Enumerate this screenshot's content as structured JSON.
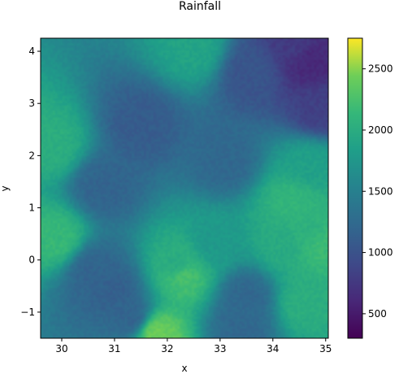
{
  "chart_data": {
    "type": "heatmap",
    "title": "Rainfall",
    "xlabel": "x",
    "ylabel": "y",
    "xlim": [
      29.6,
      35.05
    ],
    "ylim": [
      -1.5,
      4.25
    ],
    "x_ticks": [
      30,
      31,
      32,
      33,
      34,
      35
    ],
    "x_tick_labels": [
      "30",
      "31",
      "32",
      "33",
      "34",
      "35"
    ],
    "y_ticks": [
      -1,
      0,
      1,
      2,
      3,
      4
    ],
    "y_tick_labels": [
      "−1",
      "0",
      "1",
      "2",
      "3",
      "4"
    ],
    "colormap": "viridis",
    "color_range": [
      300,
      2750
    ],
    "colorbar_ticks": [
      500,
      1000,
      1500,
      2000,
      2500
    ],
    "colorbar_tick_labels": [
      "500",
      "1000",
      "1500",
      "2000",
      "2500"
    ],
    "grid": false,
    "features": [
      {
        "x": 34.7,
        "y": 3.8,
        "value": 400
      },
      {
        "x": 34.4,
        "y": 4.15,
        "value": 600
      },
      {
        "x": 33.6,
        "y": 3.6,
        "value": 900
      },
      {
        "x": 34.9,
        "y": 2.9,
        "value": 650
      },
      {
        "x": 31.5,
        "y": 2.6,
        "value": 1000
      },
      {
        "x": 30.8,
        "y": 1.4,
        "value": 1100
      },
      {
        "x": 33.1,
        "y": 1.9,
        "value": 1150
      },
      {
        "x": 30.6,
        "y": -0.2,
        "value": 1100
      },
      {
        "x": 31.0,
        "y": -0.6,
        "value": 1050
      },
      {
        "x": 31.3,
        "y": -1.1,
        "value": 1100
      },
      {
        "x": 33.5,
        "y": -0.7,
        "value": 1150
      },
      {
        "x": 33.4,
        "y": -1.3,
        "value": 1150
      },
      {
        "x": 29.8,
        "y": 2.2,
        "value": 2150
      },
      {
        "x": 29.9,
        "y": 0.4,
        "value": 2300
      },
      {
        "x": 32.3,
        "y": -0.3,
        "value": 2450
      },
      {
        "x": 32.2,
        "y": -0.1,
        "value": 2100
      },
      {
        "x": 31.8,
        "y": -1.4,
        "value": 2650
      },
      {
        "x": 34.9,
        "y": 0.3,
        "value": 2350
      },
      {
        "x": 34.4,
        "y": 1.1,
        "value": 2250
      },
      {
        "x": 34.7,
        "y": 0.5,
        "value": 2200
      },
      {
        "x": 34.6,
        "y": -0.8,
        "value": 2150
      },
      {
        "x": 34.2,
        "y": 0.3,
        "value": 2100
      },
      {
        "x": 32.5,
        "y": 4.05,
        "value": 2000
      },
      {
        "x": 34.7,
        "y": 1.8,
        "value": 1950
      },
      {
        "x": 32.9,
        "y": 0.3,
        "value": 1850
      }
    ]
  }
}
